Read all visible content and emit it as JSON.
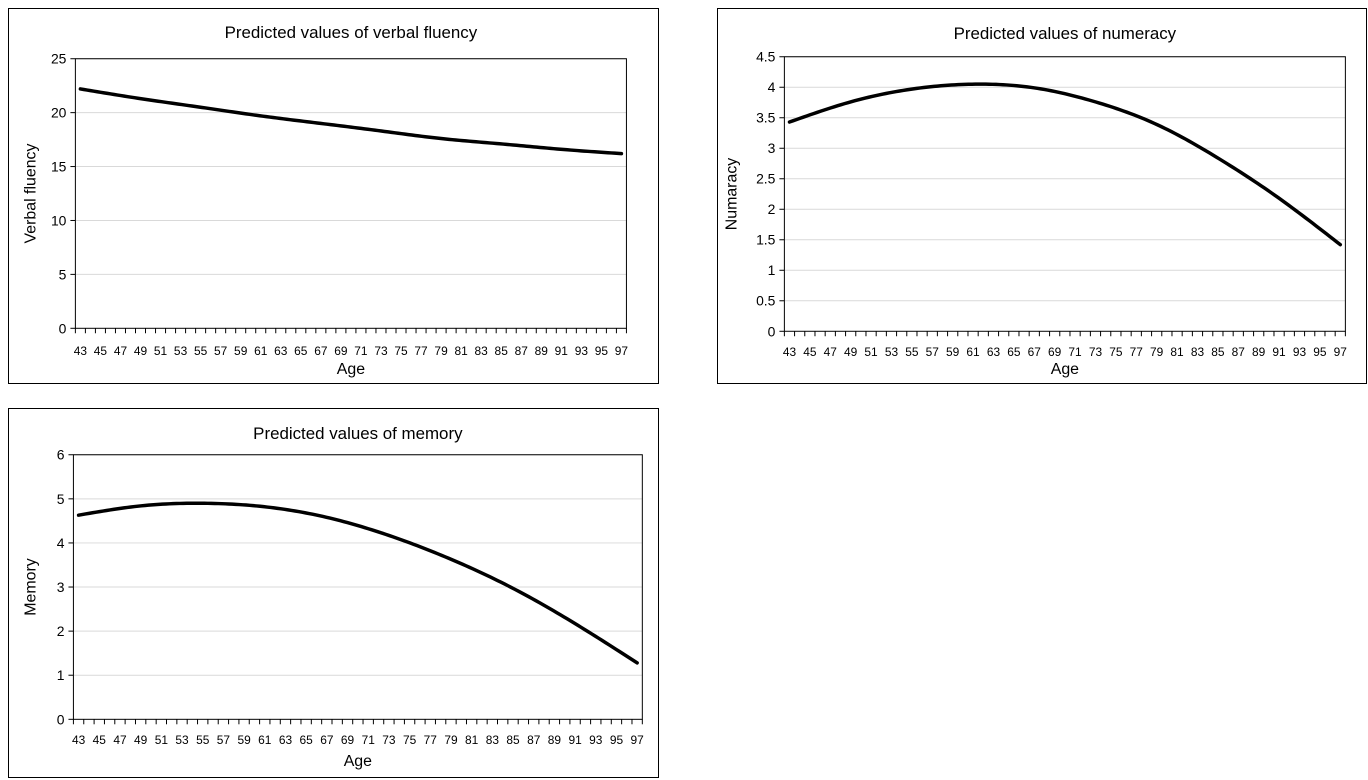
{
  "chart_data": [
    {
      "type": "line",
      "title": "Predicted values of verbal fluency",
      "xlabel": "Age",
      "ylabel": "Verbal fluency",
      "ylim": [
        0,
        25
      ],
      "yticks": [
        0,
        5,
        10,
        15,
        20,
        25
      ],
      "xlim": [
        43,
        97
      ],
      "grid": true,
      "legend": "none",
      "series": [
        {
          "x": [
            43,
            49,
            55,
            61,
            67,
            73,
            79,
            85,
            91,
            97
          ],
          "y": [
            22.2,
            21.3,
            20.5,
            19.7,
            19.0,
            18.3,
            17.6,
            17.1,
            16.6,
            16.2
          ]
        }
      ]
    },
    {
      "type": "line",
      "title": "Predicted values of numeracy",
      "xlabel": "Age",
      "ylabel": "Numaracy",
      "ylim": [
        0,
        4.5
      ],
      "yticks": [
        0,
        0.5,
        1,
        1.5,
        2,
        2.5,
        3,
        3.5,
        4,
        4.5
      ],
      "xlim": [
        43,
        97
      ],
      "grid": true,
      "legend": "none",
      "series": [
        {
          "x": [
            43,
            49,
            55,
            61,
            67,
            73,
            79,
            85,
            91,
            97
          ],
          "y": [
            3.43,
            3.76,
            3.97,
            4.05,
            3.99,
            3.76,
            3.39,
            2.84,
            2.18,
            1.42
          ]
        }
      ]
    },
    {
      "type": "line",
      "title": "Predicted values of memory",
      "xlabel": "Age",
      "ylabel": "Memory",
      "ylim": [
        0,
        6
      ],
      "yticks": [
        0,
        1,
        2,
        3,
        4,
        5,
        6
      ],
      "xlim": [
        43,
        97
      ],
      "grid": true,
      "legend": "none",
      "series": [
        {
          "x": [
            43,
            49,
            55,
            61,
            67,
            73,
            79,
            85,
            91,
            97
          ],
          "y": [
            4.63,
            4.84,
            4.9,
            4.82,
            4.58,
            4.17,
            3.63,
            2.97,
            2.17,
            1.28
          ]
        }
      ]
    }
  ]
}
